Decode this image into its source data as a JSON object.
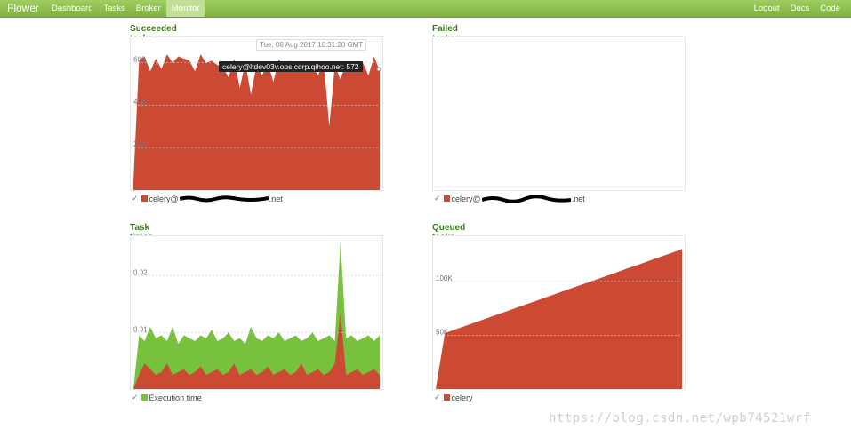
{
  "nav": {
    "brand": "Flower",
    "items": [
      {
        "label": "Dashboard",
        "active": false
      },
      {
        "label": "Tasks",
        "active": false
      },
      {
        "label": "Broker",
        "active": false
      },
      {
        "label": "Monitor",
        "active": true
      }
    ],
    "right_items": [
      {
        "label": "Logout"
      },
      {
        "label": "Docs"
      },
      {
        "label": "Code"
      }
    ]
  },
  "colors": {
    "accent": "#3d7a1f",
    "navbar": "#8ebf4e",
    "series_red": "#cc4a33",
    "series_green": "#78c13f"
  },
  "panels": {
    "succeeded": {
      "title": "Succeeded tasks",
      "date_label": "Tue, 08 Aug 2017 10:31:20 GMT",
      "tooltip": "celery@ltdev03v.ops.corp.qihoo.net: 572",
      "legend_prefix": "celery@",
      "legend_suffix": ".net"
    },
    "failed": {
      "title": "Failed tasks",
      "legend_prefix": "celery@",
      "legend_suffix": ".net"
    },
    "task_times": {
      "title": "Task times",
      "legend": "Execution time"
    },
    "queued": {
      "title": "Queued tasks",
      "legend": "celery"
    }
  },
  "watermark": "https://blog.csdn.net/wpb74521wrf",
  "chart_data": [
    {
      "type": "area",
      "title": "Succeeded tasks",
      "series": [
        {
          "name": "celery@...net",
          "values": [
            40,
            610,
            630,
            560,
            620,
            570,
            640,
            600,
            630,
            620,
            610,
            560,
            640,
            600,
            610,
            590,
            580,
            530,
            620,
            480,
            600,
            450,
            590,
            540,
            600,
            510,
            620,
            560,
            610,
            590,
            600,
            560,
            580,
            540,
            610,
            300,
            590,
            520,
            600,
            560,
            590,
            600,
            540,
            630,
            560
          ]
        }
      ],
      "yticks": [
        200,
        400,
        600
      ],
      "ylim": [
        0,
        720
      ]
    },
    {
      "type": "area",
      "title": "Failed tasks",
      "series": [
        {
          "name": "celery@...net",
          "values": []
        }
      ]
    },
    {
      "type": "area",
      "title": "Task times",
      "series": [
        {
          "name": "Execution time",
          "values": [
            0,
            0.0095,
            0.0085,
            0.011,
            0.009,
            0.0095,
            0.0085,
            0.011,
            0.008,
            0.0095,
            0.009,
            0.0085,
            0.0095,
            0.009,
            0.0105,
            0.0085,
            0.009,
            0.01,
            0.0085,
            0.009,
            0.008,
            0.011,
            0.009,
            0.0085,
            0.0095,
            0.009,
            0.01,
            0.0085,
            0.009,
            0.0095,
            0.0085,
            0.009,
            0.01,
            0.0085,
            0.009,
            0.0095,
            0.0085,
            0.026,
            0.009,
            0.0095,
            0.0085,
            0.009,
            0.0095,
            0.0085,
            0.0095
          ]
        },
        {
          "name": "",
          "values": [
            0,
            0.0025,
            0.0045,
            0.0035,
            0.0025,
            0.003,
            0.0045,
            0.0025,
            0.003,
            0.0035,
            0.0025,
            0.003,
            0.004,
            0.0025,
            0.003,
            0.0035,
            0.0025,
            0.003,
            0.0045,
            0.0025,
            0.003,
            0.0035,
            0.0025,
            0.003,
            0.004,
            0.0025,
            0.003,
            0.0035,
            0.0025,
            0.003,
            0.0045,
            0.0025,
            0.003,
            0.0035,
            0.0025,
            0.003,
            0.0045,
            0.0135,
            0.0025,
            0.003,
            0.0035,
            0.0025,
            0.003,
            0.0035,
            0.0025
          ]
        }
      ],
      "yticks": [
        0.01,
        0.02
      ],
      "ylim": [
        0,
        0.027
      ]
    },
    {
      "type": "area",
      "title": "Queued tasks",
      "series": [
        {
          "name": "celery",
          "values": [
            0,
            52000,
            55000,
            58000,
            61000,
            64000,
            67000,
            70000,
            73000,
            76000,
            79000,
            82000,
            85000,
            88000,
            91000,
            94000,
            97000,
            100000,
            103000,
            106000,
            109000,
            112000,
            115000,
            118000,
            121000,
            124000,
            127000,
            130000
          ]
        }
      ],
      "yticks": [
        50000,
        100000
      ],
      "ytick_labels": [
        "50K",
        "100K"
      ],
      "ylim": [
        0,
        142000
      ]
    }
  ]
}
